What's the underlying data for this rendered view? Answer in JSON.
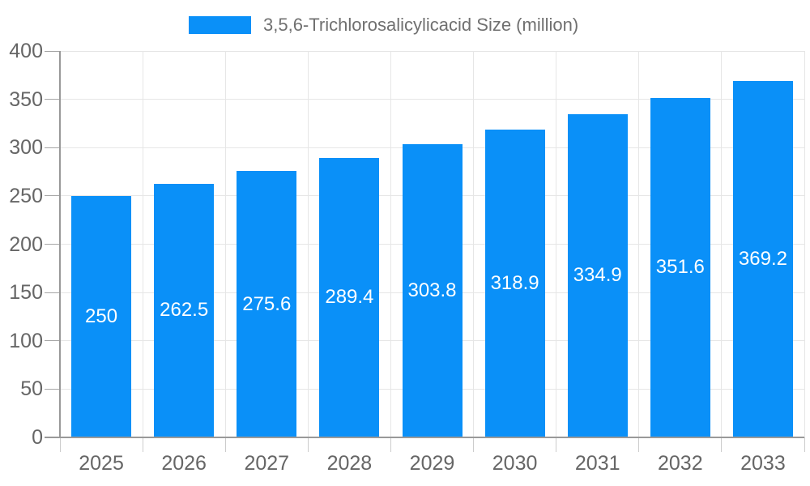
{
  "legend": {
    "label": "3,5,6-Trichlorosalicylicacid Size (million)"
  },
  "colors": {
    "bar": "#0a90f8",
    "axis": "#999999",
    "grid": "#e6e6e6",
    "y_tick": "#a6a6a6",
    "x_tick": "#cccccc",
    "axis_label": "#666666",
    "bar_label": "#ffffff",
    "legend_text": "#707070",
    "background": "#ffffff"
  },
  "chart_data": {
    "type": "bar",
    "title": "3,5,6-Trichlorosalicylicacid Size (million)",
    "categories": [
      "2025",
      "2026",
      "2027",
      "2028",
      "2029",
      "2030",
      "2031",
      "2032",
      "2033"
    ],
    "values": [
      250,
      262.5,
      275.6,
      289.4,
      303.8,
      318.9,
      334.9,
      351.6,
      369.2
    ],
    "value_labels": [
      "250",
      "262.5",
      "275.6",
      "289.4",
      "303.8",
      "318.9",
      "334.9",
      "351.6",
      "369.2"
    ],
    "xlabel": "",
    "ylabel": "",
    "ylim": [
      0,
      400
    ],
    "yticks": [
      0,
      50,
      100,
      150,
      200,
      250,
      300,
      350,
      400
    ],
    "grid": true,
    "legend_position": "top",
    "value_label_position": "inside-middle"
  }
}
